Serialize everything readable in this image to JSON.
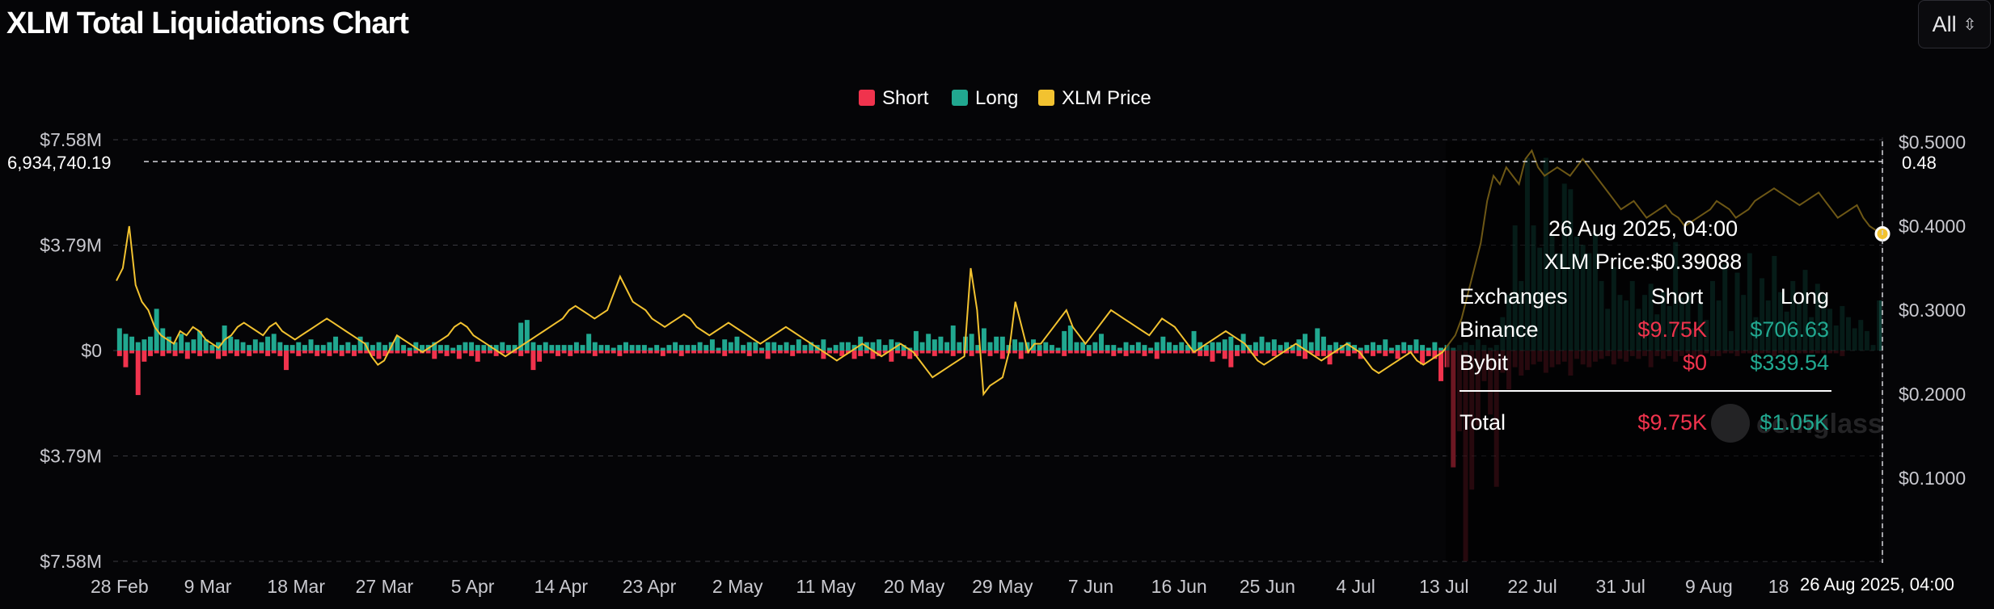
{
  "title": "XLM Total Liquidations Chart",
  "range_select": {
    "value": "All",
    "icon": "chevron-up-down-icon"
  },
  "colors": {
    "short": "#f0334d",
    "long": "#21a890",
    "price": "#f2c230",
    "grid": "#3a3a40"
  },
  "watermark": "coinglass",
  "chart_data": {
    "type": "bar",
    "title": "XLM Total Liquidations Chart",
    "legend": [
      {
        "label": "Short",
        "color": "#f0334d"
      },
      {
        "label": "Long",
        "color": "#21a890"
      },
      {
        "label": "XLM Price",
        "color": "#f2c230"
      }
    ],
    "legend_position": "top-center",
    "grid": true,
    "x_tick_labels": [
      "28 Feb",
      "9 Mar",
      "18 Mar",
      "27 Mar",
      "5 Apr",
      "14 Apr",
      "23 Apr",
      "2 May",
      "11 May",
      "20 May",
      "29 May",
      "7 Jun",
      "16 Jun",
      "25 Jun",
      "4 Jul",
      "13 Jul",
      "22 Jul",
      "31 Jul",
      "9 Aug",
      "18 Aug"
    ],
    "x_range": [
      "28 Feb 2025",
      "27 Aug 2025"
    ],
    "y_left": {
      "tick_labels": [
        "$7.58M",
        "$3.79M",
        "$0",
        "$3.79M",
        "$7.58M"
      ],
      "range": [
        -7.58,
        7.58
      ],
      "unit": "$M",
      "note": "bars above zero are long liquidations, below zero short liquidations"
    },
    "y_right": {
      "tick_labels": [
        "$0.5000",
        "$0.4000",
        "$0.3000",
        "$0.2000",
        "$0.1000"
      ],
      "range": [
        0,
        0.5
      ]
    },
    "crosshair": {
      "y_label": "6,934,740.19",
      "y_right_label": "0.48",
      "x_label": "26 Aug 2025, 04:00"
    },
    "long_liquidations_musd": [
      0.8,
      0.6,
      0.5,
      0.3,
      0.4,
      0.5,
      1.5,
      0.8,
      0.5,
      0.3,
      0.6,
      0.3,
      0.4,
      0.7,
      0.4,
      0.2,
      0.3,
      0.9,
      0.5,
      0.4,
      0.3,
      0.2,
      0.4,
      0.3,
      0.5,
      0.6,
      0.3,
      0.2,
      0.2,
      0.3,
      0.2,
      0.4,
      0.2,
      0.2,
      0.3,
      0.5,
      0.2,
      0.3,
      0.2,
      0.5,
      0.3,
      0.2,
      0.3,
      0.2,
      0.3,
      0.5,
      0.2,
      0.1,
      0.3,
      0.2,
      0.2,
      0.3,
      0.2,
      0.2,
      0.1,
      0.2,
      0.3,
      0.3,
      0.2,
      0.2,
      0.2,
      0.2,
      0.3,
      0.2,
      0.2,
      1.0,
      1.1,
      0.3,
      0.2,
      0.3,
      0.2,
      0.2,
      0.2,
      0.2,
      0.3,
      0.2,
      0.6,
      0.3,
      0.2,
      0.2,
      0.1,
      0.2,
      0.3,
      0.2,
      0.2,
      0.2,
      0.1,
      0.2,
      0.1,
      0.2,
      0.3,
      0.2,
      0.2,
      0.2,
      0.3,
      0.2,
      0.4,
      0.1,
      0.4,
      0.3,
      0.5,
      0.2,
      0.3,
      0.3,
      0.1,
      0.3,
      0.3,
      0.2,
      0.3,
      0.2,
      0.4,
      0.2,
      0.3,
      0.2,
      0.4,
      0.1,
      0.2,
      0.3,
      0.3,
      0.2,
      0.5,
      0.3,
      0.3,
      0.4,
      0.2,
      0.4,
      0.3,
      0.2,
      0.1,
      0.7,
      0.3,
      0.6,
      0.4,
      0.5,
      0.3,
      0.9,
      0.3,
      0.5,
      0.6,
      0.2,
      0.8,
      0.3,
      0.5,
      0.5,
      0.2,
      0.4,
      0.3,
      0.3,
      0.4,
      0.2,
      0.3,
      0.2,
      0.1,
      0.7,
      0.9,
      0.3,
      0.3,
      0.2,
      0.3,
      0.6,
      0.2,
      0.2,
      0.1,
      0.3,
      0.2,
      0.3,
      0.2,
      0.1,
      0.3,
      0.5,
      0.3,
      0.2,
      0.3,
      0.2,
      0.7,
      0.3,
      0.2,
      0.3,
      0.3,
      0.4,
      0.5,
      0.2,
      0.6,
      0.2,
      0.3,
      0.5,
      0.3,
      0.4,
      0.2,
      0.3,
      0.2,
      0.4,
      0.6,
      0.3,
      0.8,
      0.5,
      0.2,
      0.3,
      0.2,
      0.3,
      0.2,
      0.1,
      0.2,
      0.3,
      0.2,
      0.4,
      0.1,
      0.2,
      0.3,
      0.2,
      0.4,
      0.2,
      0.1,
      0.3,
      0.1,
      0.2,
      0.1,
      0.2,
      0.3,
      0.2,
      0.4,
      0.2,
      0.1,
      0.2,
      1.2,
      2.0,
      4.5,
      2.5,
      6.93,
      4.5,
      3.7,
      6.93,
      4.2,
      3.5,
      6.0,
      5.8,
      4.1,
      3.8,
      3.5,
      4.2,
      2.5,
      1.5,
      3.0,
      2.0,
      1.8,
      2.5,
      1.5,
      2.0,
      2.4,
      1.3,
      2.1,
      1.6,
      3.9,
      1.9,
      2.1,
      0.8,
      1.7,
      1.1,
      2.5,
      1.8,
      3.1,
      0.7,
      2.8,
      2.0,
      3.5,
      1.2,
      2.6,
      1.8,
      3.4,
      2.1,
      1.4,
      2.5,
      1.7,
      2.9,
      1.2,
      2.4,
      2.0,
      1.5,
      0.9,
      1.6,
      1.2,
      0.8,
      1.1,
      0.7,
      0.2,
      1.8
    ],
    "short_liquidations_musd": [
      0.2,
      0.6,
      0.1,
      1.6,
      0.4,
      0.2,
      0.1,
      0.2,
      0.1,
      0.2,
      0.1,
      0.3,
      0.1,
      0.2,
      0.1,
      0.1,
      0.3,
      0.2,
      0.1,
      0.2,
      0.1,
      0.2,
      0.1,
      0.1,
      0.2,
      0.1,
      0.2,
      0.7,
      0.1,
      0.2,
      0.1,
      0.1,
      0.2,
      0.1,
      0.2,
      0.1,
      0.2,
      0.1,
      0.2,
      0.1,
      0.1,
      0.2,
      0.3,
      0.2,
      0.1,
      0.1,
      0.1,
      0.2,
      0.1,
      0.1,
      0.1,
      0.3,
      0.1,
      0.2,
      0.1,
      0.3,
      0.1,
      0.2,
      0.4,
      0.1,
      0.1,
      0.2,
      0.1,
      0.1,
      0.1,
      0.2,
      0.1,
      0.7,
      0.4,
      0.1,
      0.1,
      0.2,
      0.1,
      0.2,
      0.1,
      0.1,
      0.1,
      0.2,
      0.1,
      0.1,
      0.1,
      0.2,
      0.1,
      0.1,
      0.1,
      0.1,
      0.1,
      0.1,
      0.2,
      0.1,
      0.1,
      0.2,
      0.1,
      0.1,
      0.1,
      0.1,
      0.1,
      0.1,
      0.2,
      0.1,
      0.1,
      0.1,
      0.2,
      0.1,
      0.1,
      0.3,
      0.1,
      0.1,
      0.1,
      0.2,
      0.1,
      0.1,
      0.1,
      0.1,
      0.3,
      0.1,
      0.1,
      0.2,
      0.1,
      0.3,
      0.2,
      0.1,
      0.3,
      0.2,
      0.1,
      0.4,
      0.1,
      0.2,
      0.3,
      0.2,
      0.1,
      0.1,
      0.2,
      0.1,
      0.1,
      0.2,
      0.1,
      0.1,
      0.2,
      0.1,
      0.1,
      0.2,
      0.1,
      0.3,
      0.1,
      0.1,
      0.3,
      0.1,
      0.1,
      0.2,
      0.1,
      0.1,
      0.1,
      0.2,
      0.1,
      0.1,
      0.1,
      0.2,
      0.1,
      0.1,
      0.1,
      0.2,
      0.1,
      0.2,
      0.1,
      0.1,
      0.2,
      0.1,
      0.3,
      0.1,
      0.1,
      0.1,
      0.1,
      0.1,
      0.1,
      0.2,
      0.2,
      0.4,
      0.1,
      0.3,
      0.6,
      0.2,
      0.1,
      0.1,
      0.2,
      0.1,
      0.1,
      0.2,
      0.1,
      0.1,
      0.1,
      0.2,
      0.3,
      0.1,
      0.2,
      0.2,
      0.5,
      0.1,
      0.1,
      0.2,
      0.1,
      0.3,
      0.1,
      0.2,
      0.1,
      0.2,
      0.1,
      0.3,
      0.1,
      0.1,
      0.1,
      0.5,
      0.2,
      0.3,
      1.1,
      0.6,
      4.2,
      2.9,
      7.58,
      5.0,
      2.7,
      1.1,
      2.3,
      4.9,
      0.8,
      1.4,
      0.6,
      0.9,
      0.7,
      0.5,
      0.4,
      0.8,
      0.6,
      0.5,
      0.4,
      0.9,
      0.3,
      0.5,
      0.6,
      0.4,
      0.3,
      0.2,
      0.5,
      0.3,
      0.4,
      0.2,
      0.3,
      0.2,
      0.6,
      0.2,
      0.3,
      0.2,
      0.4,
      0.2,
      0.1,
      0.3,
      0.2,
      0.1,
      0.2,
      0.2,
      0.1,
      0.1,
      0.2,
      0.1,
      0.1,
      0.2,
      0.1,
      0.1,
      0.2,
      0.1,
      0.1,
      0.1,
      0.1,
      0.1,
      0.1,
      0.1,
      0.1,
      0.1,
      0.1,
      0.2
    ],
    "xlm_price_usd": [
      0.335,
      0.35,
      0.4,
      0.33,
      0.31,
      0.3,
      0.28,
      0.27,
      0.265,
      0.26,
      0.275,
      0.27,
      0.28,
      0.275,
      0.265,
      0.26,
      0.255,
      0.265,
      0.27,
      0.28,
      0.285,
      0.28,
      0.275,
      0.27,
      0.28,
      0.285,
      0.275,
      0.27,
      0.265,
      0.27,
      0.275,
      0.28,
      0.285,
      0.29,
      0.285,
      0.28,
      0.275,
      0.27,
      0.265,
      0.26,
      0.245,
      0.235,
      0.24,
      0.255,
      0.27,
      0.265,
      0.26,
      0.255,
      0.25,
      0.255,
      0.26,
      0.265,
      0.27,
      0.28,
      0.285,
      0.28,
      0.27,
      0.265,
      0.26,
      0.255,
      0.25,
      0.245,
      0.25,
      0.255,
      0.26,
      0.265,
      0.27,
      0.275,
      0.28,
      0.285,
      0.29,
      0.3,
      0.305,
      0.3,
      0.295,
      0.29,
      0.295,
      0.3,
      0.32,
      0.34,
      0.325,
      0.31,
      0.305,
      0.3,
      0.29,
      0.285,
      0.28,
      0.285,
      0.29,
      0.295,
      0.29,
      0.28,
      0.275,
      0.27,
      0.275,
      0.28,
      0.285,
      0.28,
      0.275,
      0.27,
      0.265,
      0.26,
      0.265,
      0.27,
      0.275,
      0.28,
      0.275,
      0.27,
      0.265,
      0.26,
      0.255,
      0.25,
      0.245,
      0.24,
      0.245,
      0.25,
      0.255,
      0.26,
      0.255,
      0.25,
      0.245,
      0.25,
      0.255,
      0.26,
      0.255,
      0.25,
      0.24,
      0.23,
      0.22,
      0.225,
      0.23,
      0.235,
      0.24,
      0.245,
      0.35,
      0.3,
      0.2,
      0.21,
      0.215,
      0.22,
      0.25,
      0.31,
      0.28,
      0.25,
      0.26,
      0.26,
      0.27,
      0.28,
      0.29,
      0.3,
      0.28,
      0.27,
      0.26,
      0.27,
      0.28,
      0.29,
      0.3,
      0.295,
      0.29,
      0.285,
      0.28,
      0.275,
      0.27,
      0.28,
      0.29,
      0.285,
      0.28,
      0.27,
      0.26,
      0.25,
      0.255,
      0.26,
      0.265,
      0.27,
      0.275,
      0.27,
      0.265,
      0.26,
      0.25,
      0.24,
      0.235,
      0.24,
      0.245,
      0.25,
      0.255,
      0.26,
      0.255,
      0.25,
      0.245,
      0.24,
      0.245,
      0.25,
      0.255,
      0.26,
      0.255,
      0.25,
      0.24,
      0.23,
      0.225,
      0.23,
      0.235,
      0.24,
      0.245,
      0.25,
      0.24,
      0.235,
      0.24,
      0.245,
      0.25,
      0.26,
      0.27,
      0.29,
      0.32,
      0.35,
      0.38,
      0.43,
      0.46,
      0.45,
      0.47,
      0.46,
      0.45,
      0.48,
      0.49,
      0.47,
      0.46,
      0.465,
      0.47,
      0.465,
      0.46,
      0.47,
      0.48,
      0.47,
      0.46,
      0.45,
      0.44,
      0.43,
      0.42,
      0.425,
      0.43,
      0.42,
      0.41,
      0.415,
      0.42,
      0.425,
      0.415,
      0.41,
      0.4,
      0.405,
      0.41,
      0.415,
      0.42,
      0.43,
      0.425,
      0.42,
      0.41,
      0.415,
      0.42,
      0.43,
      0.435,
      0.44,
      0.445,
      0.44,
      0.435,
      0.43,
      0.425,
      0.43,
      0.435,
      0.44,
      0.43,
      0.42,
      0.41,
      0.415,
      0.42,
      0.425,
      0.41,
      0.4,
      0.395,
      0.39088
    ]
  },
  "tooltip": {
    "date": "26 Aug 2025, 04:00",
    "price_line": "XLM Price:$0.39088",
    "headers": {
      "exchange": "Exchanges",
      "short": "Short",
      "long": "Long"
    },
    "rows": [
      {
        "exchange": "Binance",
        "short": "$9.75K",
        "long": "$706.63"
      },
      {
        "exchange": "Bybit",
        "short": "$0",
        "long": "$339.54"
      }
    ],
    "total": {
      "label": "Total",
      "short": "$9.75K",
      "long": "$1.05K"
    }
  }
}
